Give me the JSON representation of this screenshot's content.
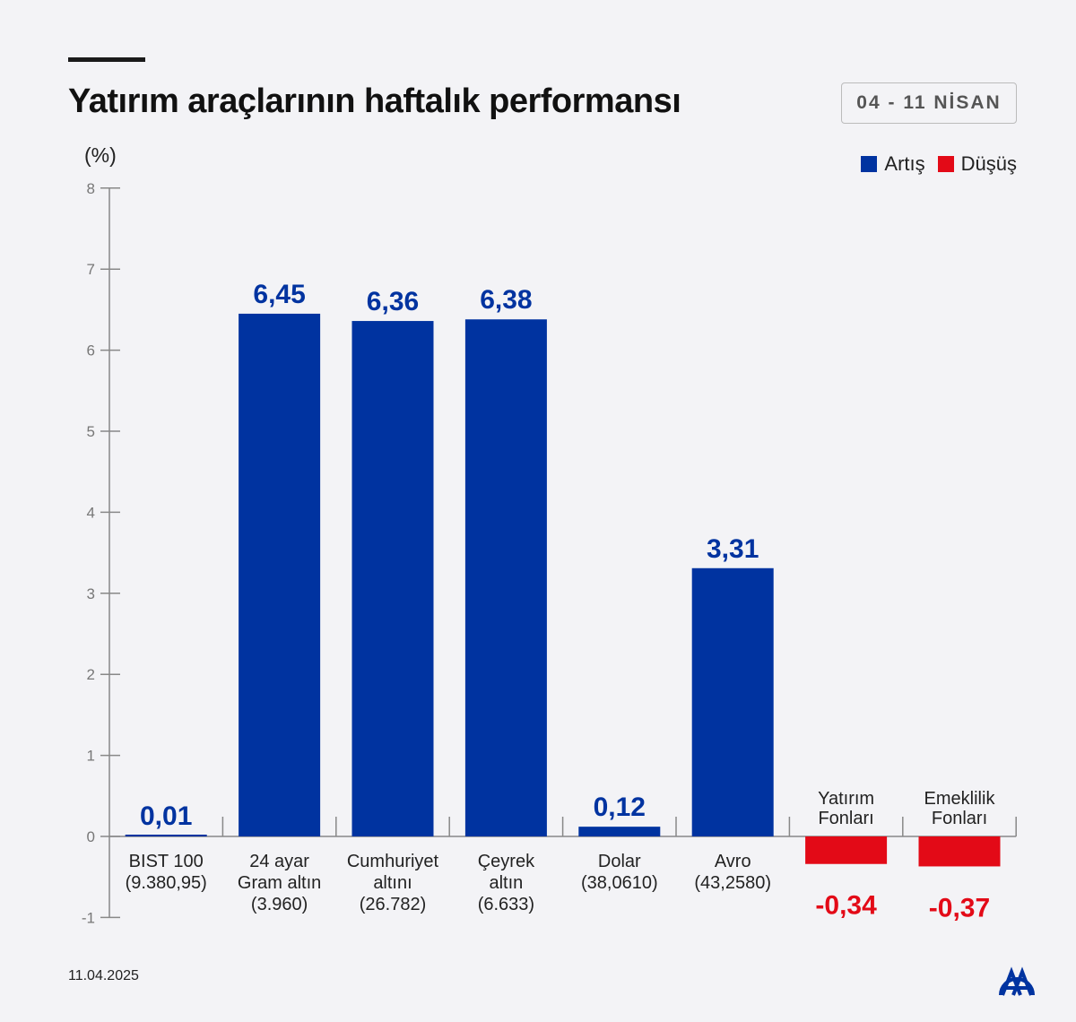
{
  "header": {
    "title": "Yatırım araçlarının haftalık performansı",
    "date_range": "04 - 11 NİSAN"
  },
  "footer": {
    "date": "11.04.2025",
    "logo": "AA"
  },
  "colors": {
    "increase": "#0033a0",
    "decrease": "#e30a17",
    "background": "#f3f3f6"
  },
  "chart_data": {
    "type": "bar",
    "title": "Yatırım araçlarının haftalık performansı",
    "ylabel": "(%)",
    "xlabel": "",
    "ylim": [
      -1,
      8
    ],
    "yticks": [
      "-1",
      "0",
      "1",
      "2",
      "3",
      "4",
      "5",
      "6",
      "7",
      "8"
    ],
    "legend": {
      "position": "top-right",
      "entries": [
        {
          "label": "Artış",
          "color": "#0033a0"
        },
        {
          "label": "Düşüş",
          "color": "#e30a17"
        }
      ]
    },
    "categories": [
      {
        "lines": [
          "BIST 100",
          "(9.380,95)"
        ]
      },
      {
        "lines": [
          "24 ayar",
          "Gram altın",
          "(3.960)"
        ]
      },
      {
        "lines": [
          "Cumhuriyet",
          "altını",
          "(26.782)"
        ]
      },
      {
        "lines": [
          "Çeyrek",
          "altın",
          "(6.633)"
        ]
      },
      {
        "lines": [
          "Dolar",
          "(38,0610)"
        ]
      },
      {
        "lines": [
          "Avro",
          "(43,2580)"
        ]
      },
      {
        "lines": [
          "Yatırım",
          "Fonları"
        ]
      },
      {
        "lines": [
          "Emeklilik",
          "Fonları"
        ]
      }
    ],
    "values": [
      0.01,
      6.45,
      6.36,
      6.38,
      0.12,
      3.31,
      -0.34,
      -0.37
    ],
    "value_labels": [
      "0,01",
      "6,45",
      "6,36",
      "6,38",
      "0,12",
      "3,31",
      "-0,34",
      "-0,37"
    ]
  }
}
